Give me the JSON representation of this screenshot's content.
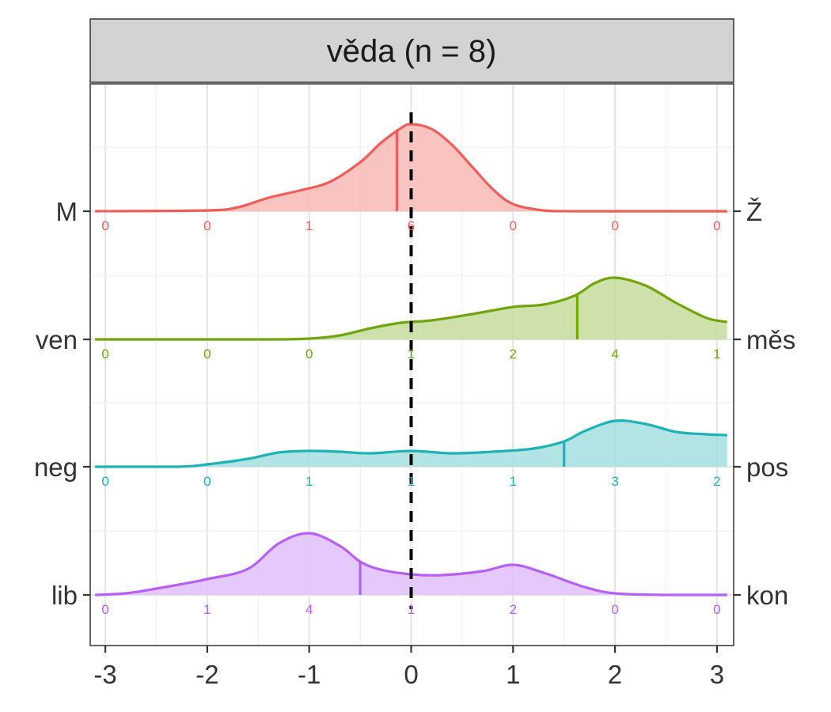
{
  "chart_data": {
    "type": "area",
    "title": "věda (n = 8)",
    "x_ticks": [
      "-3",
      "-2",
      "-1",
      "0",
      "1",
      "2",
      "3"
    ],
    "x_tick_values": [
      -3,
      -2,
      -1,
      0,
      1,
      2,
      3
    ],
    "xlim": [
      -3.1,
      3.1
    ],
    "reference_line_x": 0,
    "grid": true,
    "series": [
      {
        "left_label": "lib",
        "right_label": "kon",
        "color": "#B75FF6",
        "fill": "#E0BFFC",
        "mean": -0.5,
        "counts": [
          0,
          1,
          4,
          1,
          2,
          0,
          0
        ],
        "count_labels": [
          "0",
          "1",
          "4",
          "1",
          "2",
          "0",
          "0"
        ],
        "density": [
          [
            -3.1,
            0
          ],
          [
            -2.8,
            0.02
          ],
          [
            -2.5,
            0.08
          ],
          [
            -2.0,
            0.2
          ],
          [
            -1.6,
            0.33
          ],
          [
            -1.3,
            0.65
          ],
          [
            -1.0,
            0.78
          ],
          [
            -0.7,
            0.62
          ],
          [
            -0.5,
            0.42
          ],
          [
            -0.3,
            0.32
          ],
          [
            0.0,
            0.26
          ],
          [
            0.3,
            0.25
          ],
          [
            0.7,
            0.3
          ],
          [
            1.0,
            0.38
          ],
          [
            1.3,
            0.28
          ],
          [
            1.7,
            0.1
          ],
          [
            2.0,
            0.02
          ],
          [
            2.5,
            0
          ],
          [
            3.1,
            0
          ]
        ]
      },
      {
        "left_label": "neg",
        "right_label": "pos",
        "color": "#1EB2B4",
        "fill": "#A5DFE0",
        "mean": 1.5,
        "counts": [
          0,
          0,
          1,
          1,
          1,
          3,
          2
        ],
        "count_labels": [
          "0",
          "0",
          "1",
          "1",
          "1",
          "3",
          "2"
        ],
        "density": [
          [
            -3.1,
            0
          ],
          [
            -2.3,
            0
          ],
          [
            -2.0,
            0.03
          ],
          [
            -1.6,
            0.1
          ],
          [
            -1.3,
            0.18
          ],
          [
            -1.0,
            0.2
          ],
          [
            -0.7,
            0.19
          ],
          [
            -0.4,
            0.17
          ],
          [
            0.0,
            0.2
          ],
          [
            0.4,
            0.17
          ],
          [
            0.8,
            0.19
          ],
          [
            1.2,
            0.23
          ],
          [
            1.5,
            0.32
          ],
          [
            1.7,
            0.45
          ],
          [
            2.0,
            0.58
          ],
          [
            2.3,
            0.54
          ],
          [
            2.6,
            0.44
          ],
          [
            2.9,
            0.41
          ],
          [
            3.1,
            0.4
          ]
        ]
      },
      {
        "left_label": "ven",
        "right_label": "měs",
        "color": "#70A60C",
        "fill": "#C5DC9C",
        "mean": 1.63,
        "counts": [
          0,
          0,
          0,
          1,
          2,
          4,
          1
        ],
        "count_labels": [
          "0",
          "0",
          "0",
          "1",
          "2",
          "4",
          "1"
        ],
        "density": [
          [
            -3.1,
            0
          ],
          [
            -1.5,
            0
          ],
          [
            -1.0,
            0.01
          ],
          [
            -0.7,
            0.05
          ],
          [
            -0.4,
            0.14
          ],
          [
            -0.1,
            0.21
          ],
          [
            0.2,
            0.24
          ],
          [
            0.6,
            0.32
          ],
          [
            1.0,
            0.41
          ],
          [
            1.3,
            0.44
          ],
          [
            1.6,
            0.55
          ],
          [
            1.8,
            0.71
          ],
          [
            2.0,
            0.78
          ],
          [
            2.3,
            0.68
          ],
          [
            2.6,
            0.46
          ],
          [
            2.9,
            0.27
          ],
          [
            3.1,
            0.22
          ]
        ]
      },
      {
        "left_label": "M",
        "right_label": "Ž",
        "color": "#EE5D58",
        "fill": "#F8B8B5",
        "mean": -0.14,
        "counts": [
          0,
          0,
          1,
          6,
          0,
          0,
          0
        ],
        "count_labels": [
          "0",
          "0",
          "1",
          "6",
          "0",
          "0",
          "0"
        ],
        "density": [
          [
            -3.1,
            0
          ],
          [
            -2.0,
            0.01
          ],
          [
            -1.7,
            0.05
          ],
          [
            -1.4,
            0.17
          ],
          [
            -1.1,
            0.26
          ],
          [
            -0.8,
            0.37
          ],
          [
            -0.5,
            0.62
          ],
          [
            -0.3,
            0.86
          ],
          [
            -0.1,
            1.05
          ],
          [
            0.0,
            1.1
          ],
          [
            0.2,
            1.04
          ],
          [
            0.4,
            0.84
          ],
          [
            0.6,
            0.56
          ],
          [
            0.8,
            0.28
          ],
          [
            1.0,
            0.09
          ],
          [
            1.3,
            0.01
          ],
          [
            1.6,
            0
          ],
          [
            3.1,
            0
          ]
        ]
      }
    ]
  }
}
